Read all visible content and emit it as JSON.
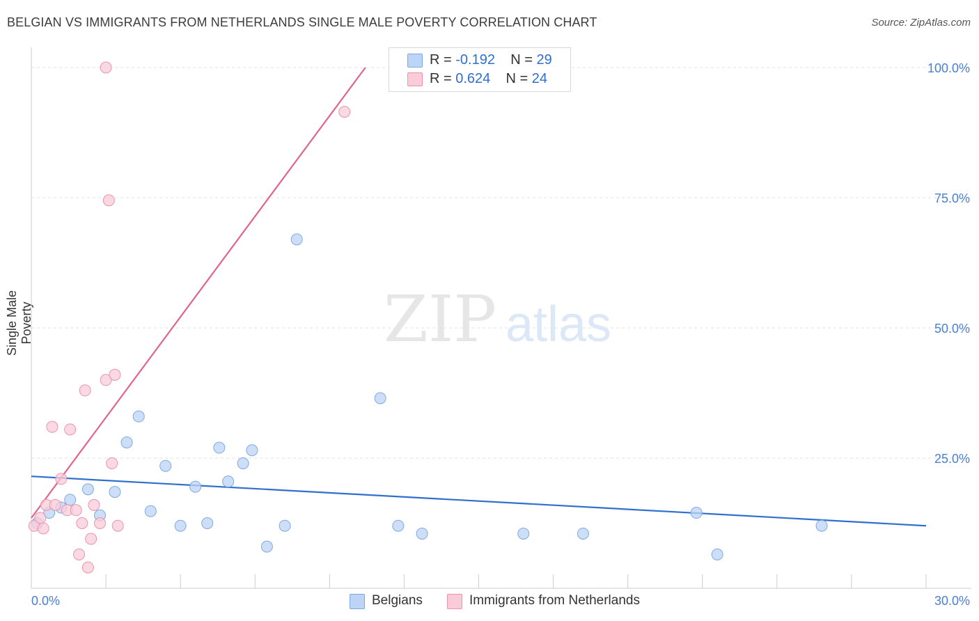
{
  "title": "BELGIAN VS IMMIGRANTS FROM NETHERLANDS SINGLE MALE POVERTY CORRELATION CHART",
  "source": "Source: ZipAtlas.com",
  "watermark": {
    "zip": "ZIP",
    "atlas": "atlas"
  },
  "legend": [
    {
      "r_label": "R = ",
      "r_value": "-0.192",
      "n_label": "N = ",
      "n_value": "29",
      "color": "#a8c8f0"
    },
    {
      "r_label": "R = ",
      "r_value": " 0.624",
      "n_label": "N = ",
      "n_value": "24",
      "color": "#f5b8c8"
    }
  ],
  "colors": {
    "belgians_fill": "#bcd4f5",
    "belgians_stroke": "#7fa8e0",
    "netherlands_fill": "#f9ccd8",
    "netherlands_stroke": "#eb93ad",
    "belgians_line": "#2e6fcf",
    "netherlands_line": "#e0648c",
    "tick_label": "#4a7fd0"
  },
  "chart_data": {
    "type": "scatter",
    "title": "BELGIAN VS IMMIGRANTS FROM NETHERLANDS SINGLE MALE POVERTY CORRELATION CHART",
    "xlabel": "",
    "ylabel": "Single Male Poverty",
    "xlim": [
      0,
      30
    ],
    "ylim": [
      0,
      100
    ],
    "x_tick_labels": [
      "0.0%",
      "30.0%"
    ],
    "y_tick_labels": [
      "25.0%",
      "50.0%",
      "75.0%",
      "100.0%"
    ],
    "y_ticks": [
      25,
      50,
      75,
      100
    ],
    "grid": true,
    "legend_position": "top-center",
    "series": [
      {
        "name": "Belgians",
        "points": [
          [
            0.2,
            12.5
          ],
          [
            0.6,
            14.5
          ],
          [
            1.0,
            15.5
          ],
          [
            1.3,
            17.0
          ],
          [
            1.9,
            19.0
          ],
          [
            2.3,
            14.0
          ],
          [
            2.8,
            18.5
          ],
          [
            3.2,
            28.0
          ],
          [
            3.6,
            33.0
          ],
          [
            4.0,
            14.8
          ],
          [
            4.5,
            23.5
          ],
          [
            5.0,
            12.0
          ],
          [
            5.5,
            19.5
          ],
          [
            5.9,
            12.5
          ],
          [
            6.3,
            27.0
          ],
          [
            6.6,
            20.5
          ],
          [
            7.1,
            24.0
          ],
          [
            7.4,
            26.5
          ],
          [
            7.9,
            8.0
          ],
          [
            8.5,
            12.0
          ],
          [
            8.9,
            67.0
          ],
          [
            11.7,
            36.5
          ],
          [
            12.3,
            12.0
          ],
          [
            13.1,
            10.5
          ],
          [
            16.5,
            10.5
          ],
          [
            18.5,
            10.5
          ],
          [
            22.3,
            14.5
          ],
          [
            23.0,
            6.5
          ],
          [
            26.5,
            12.0
          ]
        ],
        "trend": {
          "x": [
            0,
            30
          ],
          "y": [
            21.5,
            12.0
          ]
        }
      },
      {
        "name": "Immigrants from Netherlands",
        "points": [
          [
            0.1,
            12.0
          ],
          [
            0.3,
            13.5
          ],
          [
            0.5,
            16.0
          ],
          [
            0.7,
            31.0
          ],
          [
            0.8,
            16.0
          ],
          [
            1.0,
            21.0
          ],
          [
            1.2,
            15.0
          ],
          [
            1.3,
            30.5
          ],
          [
            1.5,
            15.0
          ],
          [
            1.6,
            6.5
          ],
          [
            1.7,
            12.5
          ],
          [
            1.8,
            38.0
          ],
          [
            1.9,
            4.0
          ],
          [
            2.0,
            9.5
          ],
          [
            2.1,
            16.0
          ],
          [
            2.3,
            12.5
          ],
          [
            2.5,
            100.0
          ],
          [
            2.5,
            40.0
          ],
          [
            2.6,
            74.5
          ],
          [
            2.7,
            24.0
          ],
          [
            2.8,
            41.0
          ],
          [
            2.9,
            12.0
          ],
          [
            10.5,
            91.5
          ],
          [
            0.4,
            11.5
          ]
        ],
        "trend": {
          "x": [
            0,
            11.2
          ],
          "y": [
            13.5,
            100.0
          ]
        }
      }
    ]
  }
}
